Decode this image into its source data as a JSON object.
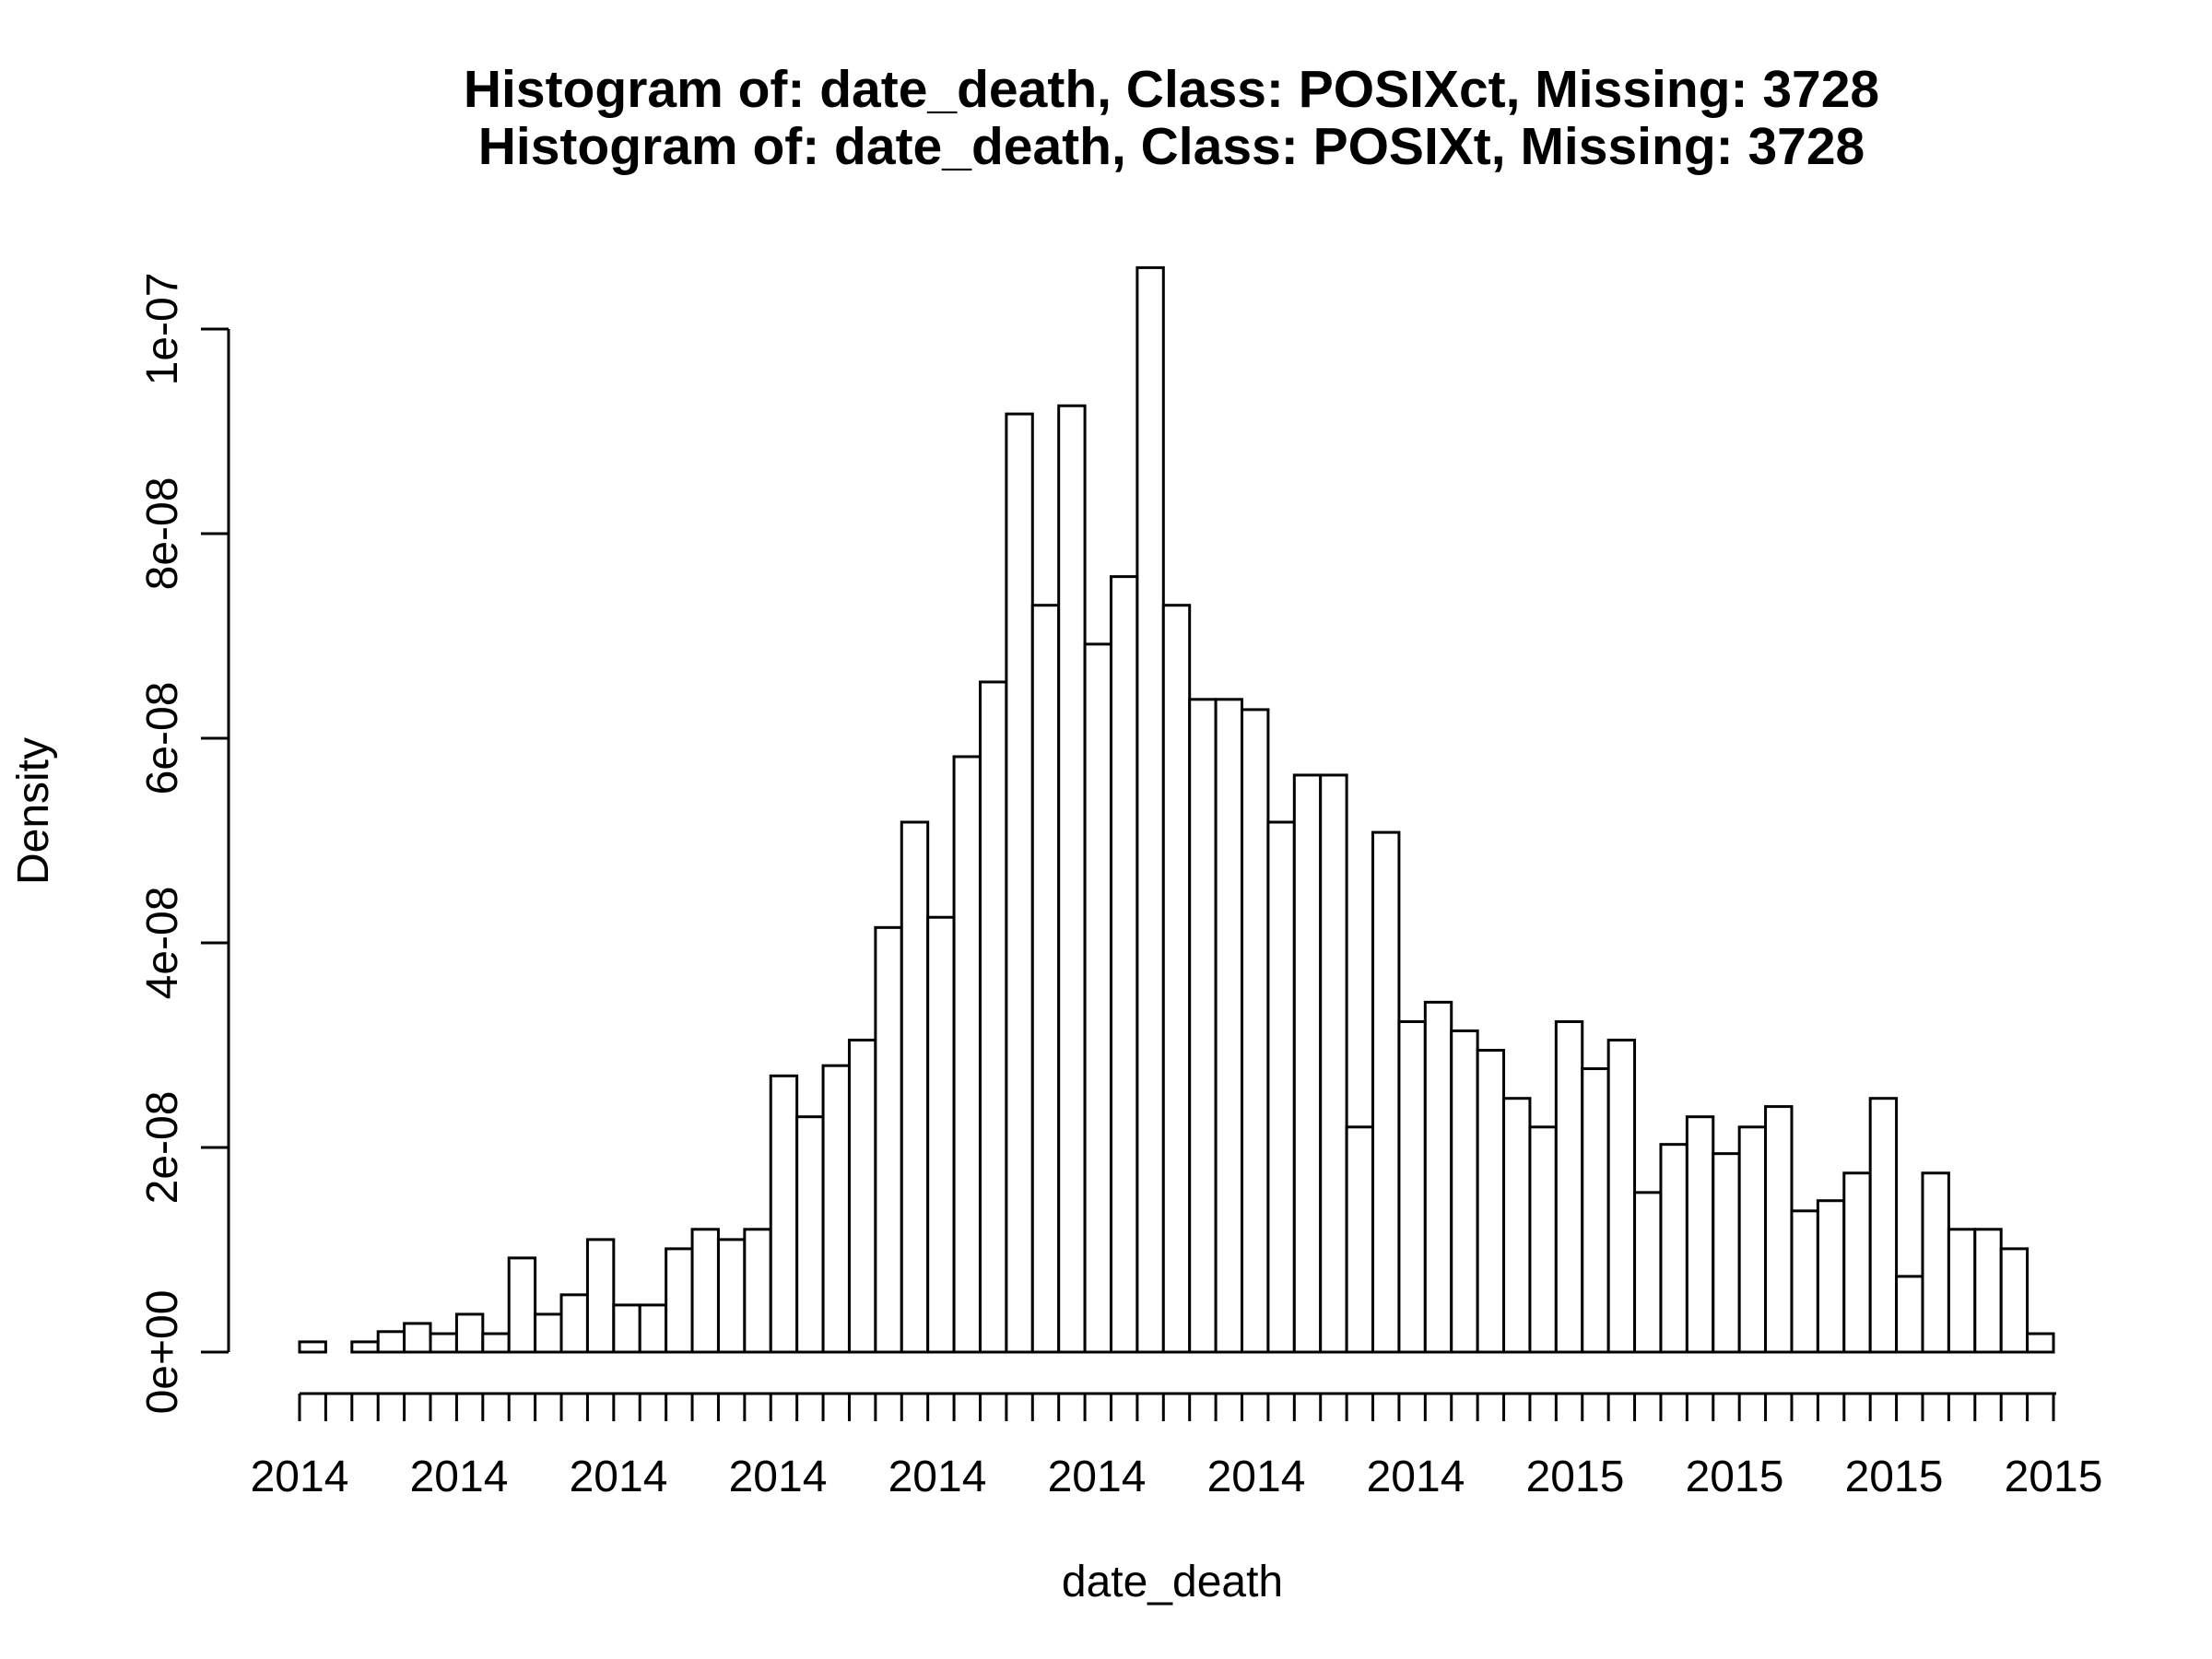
{
  "chart_data": {
    "type": "bar",
    "title_line1": "Histogram of: date_death, Class: POSIXct, Missing: 3728",
    "title_line2": "Histogram of: date_death, Class: POSIXt, Missing: 3728",
    "xlabel": "date_death",
    "ylabel": "Density",
    "ylim": [
      0,
      1.06e-07
    ],
    "yticks": [
      {
        "value": 0,
        "label": "0e+00"
      },
      {
        "value": 2e-08,
        "label": "2e-08"
      },
      {
        "value": 4e-08,
        "label": "4e-08"
      },
      {
        "value": 6e-08,
        "label": "6e-08"
      },
      {
        "value": 8e-08,
        "label": "8e-08"
      },
      {
        "value": 1e-07,
        "label": "1e-07"
      }
    ],
    "xtick_labels": [
      "2014",
      "2014",
      "2014",
      "2014",
      "2014",
      "2014",
      "2014",
      "2014",
      "2015",
      "2015",
      "2015",
      "2015"
    ],
    "values": [
      1e-09,
      0,
      1e-09,
      2e-09,
      2.8e-09,
      1.8e-09,
      3.7e-09,
      1.8e-09,
      9.2e-09,
      3.7e-09,
      5.6e-09,
      1.1e-08,
      4.6e-09,
      4.6e-09,
      1.01e-08,
      1.2e-08,
      1.1e-08,
      1.2e-08,
      2.7e-08,
      2.3e-08,
      2.8e-08,
      3.05e-08,
      4.15e-08,
      5.18e-08,
      4.25e-08,
      5.82e-08,
      6.55e-08,
      9.17e-08,
      7.3e-08,
      9.25e-08,
      6.92e-08,
      7.58e-08,
      1.06e-07,
      7.3e-08,
      6.38e-08,
      6.38e-08,
      6.28e-08,
      5.18e-08,
      5.64e-08,
      5.64e-08,
      2.2e-08,
      5.08e-08,
      3.23e-08,
      3.42e-08,
      3.14e-08,
      2.95e-08,
      2.48e-08,
      2.2e-08,
      3.23e-08,
      2.77e-08,
      3.05e-08,
      1.56e-08,
      2.03e-08,
      2.3e-08,
      1.94e-08,
      2.2e-08,
      2.4e-08,
      1.38e-08,
      1.48e-08,
      1.75e-08,
      2.48e-08,
      7.4e-09,
      1.75e-08,
      1.2e-08,
      1.2e-08,
      1.01e-08,
      1.8e-09
    ]
  }
}
